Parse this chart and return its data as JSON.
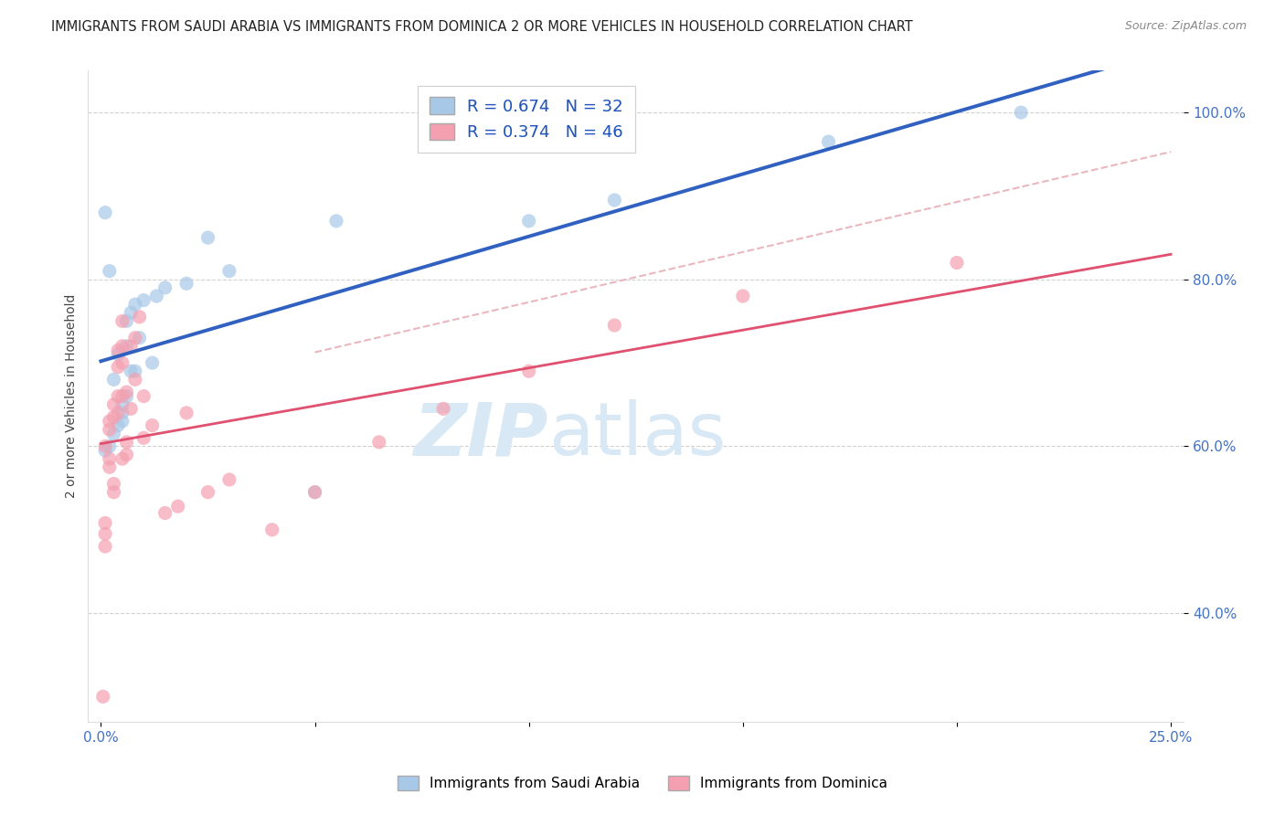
{
  "title": "IMMIGRANTS FROM SAUDI ARABIA VS IMMIGRANTS FROM DOMINICA 2 OR MORE VEHICLES IN HOUSEHOLD CORRELATION CHART",
  "source": "Source: ZipAtlas.com",
  "ylabel": "2 or more Vehicles in Household",
  "legend_label_1": "Immigrants from Saudi Arabia",
  "legend_label_2": "Immigrants from Dominica",
  "r1": 0.674,
  "n1": 32,
  "r2": 0.374,
  "n2": 46,
  "color1": "#a8c8e8",
  "color2": "#f4a0b0",
  "line_color1": "#3060c0",
  "line_color2": "#e05070",
  "dash_color": "#e8b0b8",
  "xlim": [
    -0.003,
    0.253
  ],
  "ylim": [
    0.27,
    1.05
  ],
  "xticks": [
    0.0,
    0.05,
    0.1,
    0.15,
    0.2,
    0.25
  ],
  "xticklabels": [
    "0.0%",
    "",
    "",
    "",
    "",
    "25.0%"
  ],
  "yticks": [
    0.4,
    0.6,
    0.8,
    1.0
  ],
  "yticklabels": [
    "40.0%",
    "60.0%",
    "80.0%",
    "100.0%"
  ],
  "saudi_x": [
    0.001,
    0.002,
    0.003,
    0.003,
    0.004,
    0.004,
    0.005,
    0.005,
    0.005,
    0.006,
    0.006,
    0.007,
    0.007,
    0.008,
    0.009,
    0.01,
    0.012,
    0.013,
    0.015,
    0.02,
    0.025,
    0.03,
    0.05,
    0.055,
    0.1,
    0.12,
    0.17,
    0.215,
    0.001,
    0.002,
    0.006,
    0.008
  ],
  "saudi_y": [
    0.595,
    0.6,
    0.615,
    0.68,
    0.625,
    0.71,
    0.63,
    0.64,
    0.65,
    0.72,
    0.75,
    0.69,
    0.76,
    0.77,
    0.73,
    0.775,
    0.7,
    0.78,
    0.79,
    0.795,
    0.85,
    0.81,
    0.545,
    0.87,
    0.87,
    0.895,
    0.965,
    1.0,
    0.88,
    0.81,
    0.66,
    0.69
  ],
  "dominica_x": [
    0.0005,
    0.001,
    0.001,
    0.001,
    0.001,
    0.002,
    0.002,
    0.002,
    0.002,
    0.003,
    0.003,
    0.003,
    0.003,
    0.004,
    0.004,
    0.004,
    0.004,
    0.005,
    0.005,
    0.005,
    0.005,
    0.005,
    0.006,
    0.006,
    0.006,
    0.007,
    0.007,
    0.008,
    0.008,
    0.009,
    0.01,
    0.01,
    0.012,
    0.015,
    0.018,
    0.02,
    0.025,
    0.03,
    0.04,
    0.05,
    0.065,
    0.08,
    0.1,
    0.12,
    0.15,
    0.2
  ],
  "dominica_y": [
    0.3,
    0.48,
    0.495,
    0.508,
    0.6,
    0.575,
    0.585,
    0.62,
    0.63,
    0.545,
    0.555,
    0.635,
    0.65,
    0.64,
    0.66,
    0.695,
    0.715,
    0.585,
    0.66,
    0.7,
    0.72,
    0.75,
    0.59,
    0.605,
    0.665,
    0.645,
    0.72,
    0.68,
    0.73,
    0.755,
    0.61,
    0.66,
    0.625,
    0.52,
    0.528,
    0.64,
    0.545,
    0.56,
    0.5,
    0.545,
    0.605,
    0.645,
    0.69,
    0.745,
    0.78,
    0.82
  ],
  "background_color": "#ffffff",
  "grid_color": "#cccccc",
  "title_fontsize": 10.5,
  "axis_fontsize": 10,
  "tick_fontsize": 11,
  "watermark_zip": "ZIP",
  "watermark_atlas": "atlas",
  "watermark_color": "#d8e8f4"
}
